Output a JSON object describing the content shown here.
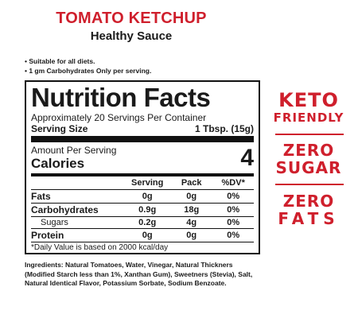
{
  "header": {
    "product_name": "TOMATO KETCHUP",
    "subtitle": "Healthy Sauce"
  },
  "bullets": [
    "• Suitable for all diets.",
    "• 1 gm Carbohydrates Only per serving."
  ],
  "nutrition": {
    "title": "Nutrition Facts",
    "servings_per_container": "Approximately 20 Servings Per Container",
    "serving_size_label": "Serving Size",
    "serving_size_value": "1 Tbsp. (15g)",
    "amount_per_serving": "Amount Per Serving",
    "calories_label": "Calories",
    "calories_value": "4",
    "columns": [
      "Serving",
      "Pack",
      "%DV*"
    ],
    "rows": [
      {
        "label": "Fats",
        "serving": "0g",
        "pack": "0g",
        "dv": "0%"
      },
      {
        "label": "Carbohydrates",
        "serving": "0.9g",
        "pack": "18g",
        "dv": "0%"
      },
      {
        "label": "Sugars",
        "serving": "0.2g",
        "pack": "4g",
        "dv": "0%"
      },
      {
        "label": "Protein",
        "serving": "0g",
        "pack": "0g",
        "dv": "0%"
      }
    ],
    "footnote": "*Daily Value is based on 2000 kcal/day"
  },
  "ingredients": "Ingredients: Natural Tomatoes, Water, Vinegar, Natural Thickners (Modified Starch less than 1%, Xanthan Gum), Sweetners (Stevia), Salt, Natural Identical Flavor, Potassium Sorbate, Sodium Benzoate.",
  "badges": {
    "keto_line1": "KETO",
    "keto_line2": "FRIENDLY",
    "zero_sugar_line1": "ZERO",
    "zero_sugar_line2": "SUGAR",
    "zero_fats_line1": "ZERO",
    "zero_fats_line2": "FATS",
    "color": "#cf1f2c"
  }
}
